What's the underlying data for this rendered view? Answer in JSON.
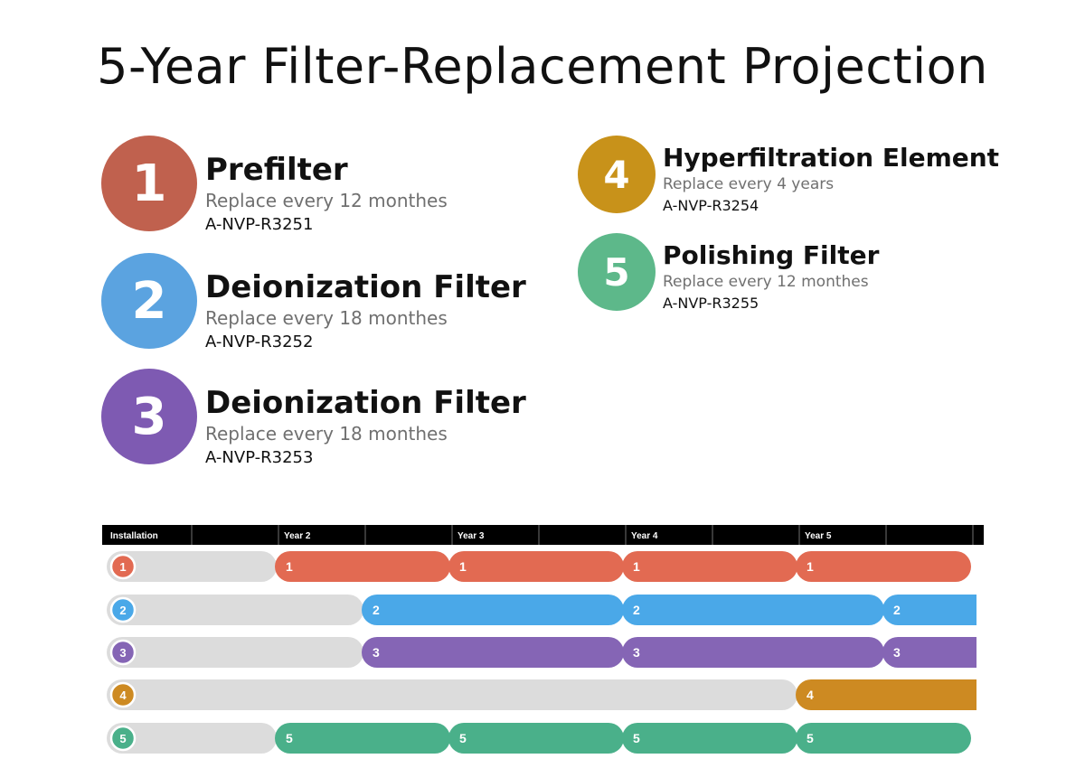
{
  "title": "5-Year Filter-Replacement Projection",
  "filters": [
    {
      "number": "1",
      "name": "Prefilter",
      "interval": "Replace every 12 monthes",
      "part": "A-NVP-R3251",
      "color": "#C0614E"
    },
    {
      "number": "2",
      "name": "Deionization Filter",
      "interval": "Replace every 18 monthes",
      "part": "A-NVP-R3252",
      "color": "#5BA3E0"
    },
    {
      "number": "3",
      "name": "Deionization Filter",
      "interval": "Replace every 18 monthes",
      "part": "A-NVP-R3253",
      "color": "#7E5AB2"
    },
    {
      "number": "4",
      "name": "Hyperfiltration Element",
      "interval": "Replace every 4 years",
      "part": "A-NVP-R3254",
      "color": "#C8921A"
    },
    {
      "number": "5",
      "name": "Polishing Filter",
      "interval": "Replace every 12 monthes",
      "part": "A-NVP-R3255",
      "color": "#5DB88A"
    }
  ],
  "timeline": {
    "header_labels": [
      "Installation",
      "Year 2",
      "Year 3",
      "Year 4",
      "Year 5"
    ],
    "header_color": "#000000",
    "idle_color": "#DCDCDC",
    "rows": [
      {
        "label": "1",
        "color": "#E26A52",
        "interval_months": 12
      },
      {
        "label": "2",
        "color": "#4AA8E8",
        "interval_months": 18
      },
      {
        "label": "3",
        "color": "#8565B5",
        "interval_months": 18
      },
      {
        "label": "4",
        "color": "#CD8A22",
        "interval_months": 48
      },
      {
        "label": "5",
        "color": "#4AB08A",
        "interval_months": 12
      }
    ]
  }
}
